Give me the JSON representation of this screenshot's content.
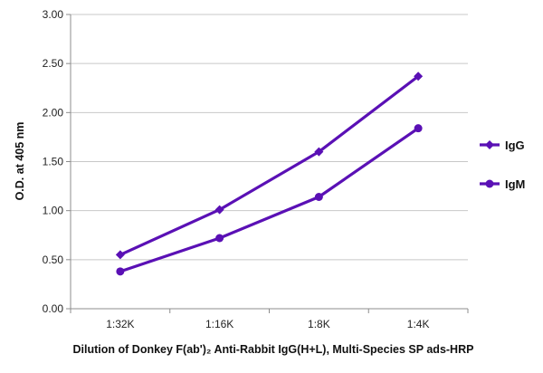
{
  "chart_data": {
    "type": "line",
    "title": "",
    "xlabel": "Dilution of Donkey F(ab')₂ Anti-Rabbit IgG(H+L), Multi-Species SP ads-HRP",
    "ylabel": "O.D. at 405 nm",
    "categories": [
      "1:32K",
      "1:16K",
      "1:8K",
      "1:4K"
    ],
    "ylim": [
      0,
      3
    ],
    "yticks": [
      "0.00",
      "0.50",
      "1.00",
      "1.50",
      "2.00",
      "2.50",
      "3.00"
    ],
    "grid": true,
    "legend_position": "right",
    "series": [
      {
        "name": "IgG",
        "values": [
          0.55,
          1.01,
          1.6,
          2.37
        ],
        "marker": "diamond",
        "color": "#5a10b5"
      },
      {
        "name": "IgM",
        "values": [
          0.38,
          0.72,
          1.14,
          1.84
        ],
        "marker": "circle",
        "color": "#5a10b5"
      }
    ]
  }
}
